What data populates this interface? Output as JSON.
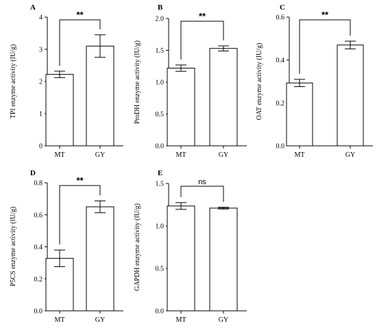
{
  "chart_data": [
    {
      "panel": "A",
      "type": "bar",
      "categories": [
        "MT",
        "GY"
      ],
      "values": [
        2.22,
        3.1
      ],
      "errors": [
        0.1,
        0.35
      ],
      "ylabel": "TPI enzyme activity  (IU/g)",
      "ylim": [
        0,
        4
      ],
      "yticks": [
        "0",
        "1",
        "2",
        "3",
        "4"
      ],
      "significance": "**"
    },
    {
      "panel": "B",
      "type": "bar",
      "categories": [
        "MT",
        "GY"
      ],
      "values": [
        1.22,
        1.53
      ],
      "errors": [
        0.05,
        0.04
      ],
      "ylabel": "ProDH enzyme activity  (IU/g)",
      "ylim": [
        0,
        2
      ],
      "yticks": [
        "0.0",
        "0.5",
        "1.0",
        "1.5",
        "2.0"
      ],
      "significance": "**"
    },
    {
      "panel": "C",
      "type": "bar",
      "categories": [
        "MT",
        "GY"
      ],
      "values": [
        0.293,
        0.47
      ],
      "errors": [
        0.017,
        0.018
      ],
      "ylabel": "OAT enzyme activity  (IU/g)",
      "ylim": [
        0,
        0.6
      ],
      "yticks": [
        "0.0",
        "0.2",
        "0.4",
        "0.6"
      ],
      "significance": "**"
    },
    {
      "panel": "D",
      "type": "bar",
      "categories": [
        "MT",
        "GY"
      ],
      "values": [
        0.328,
        0.65
      ],
      "errors": [
        0.052,
        0.037
      ],
      "ylabel": "P5CS enzyme activity  (IU/g)",
      "ylim": [
        0,
        0.8
      ],
      "yticks": [
        "0.0",
        "0.2",
        "0.4",
        "0.6",
        "0.8"
      ],
      "significance": "**"
    },
    {
      "panel": "E",
      "type": "bar",
      "categories": [
        "MT",
        "GY"
      ],
      "values": [
        1.235,
        1.21
      ],
      "errors": [
        0.04,
        0.01
      ],
      "ylabel": "GAPDH enzyme activity  (IU/g)",
      "ylim": [
        0,
        1.5
      ],
      "yticks": [
        "0.0",
        "0.5",
        "1.0",
        "1.5"
      ],
      "significance": "ns"
    }
  ]
}
